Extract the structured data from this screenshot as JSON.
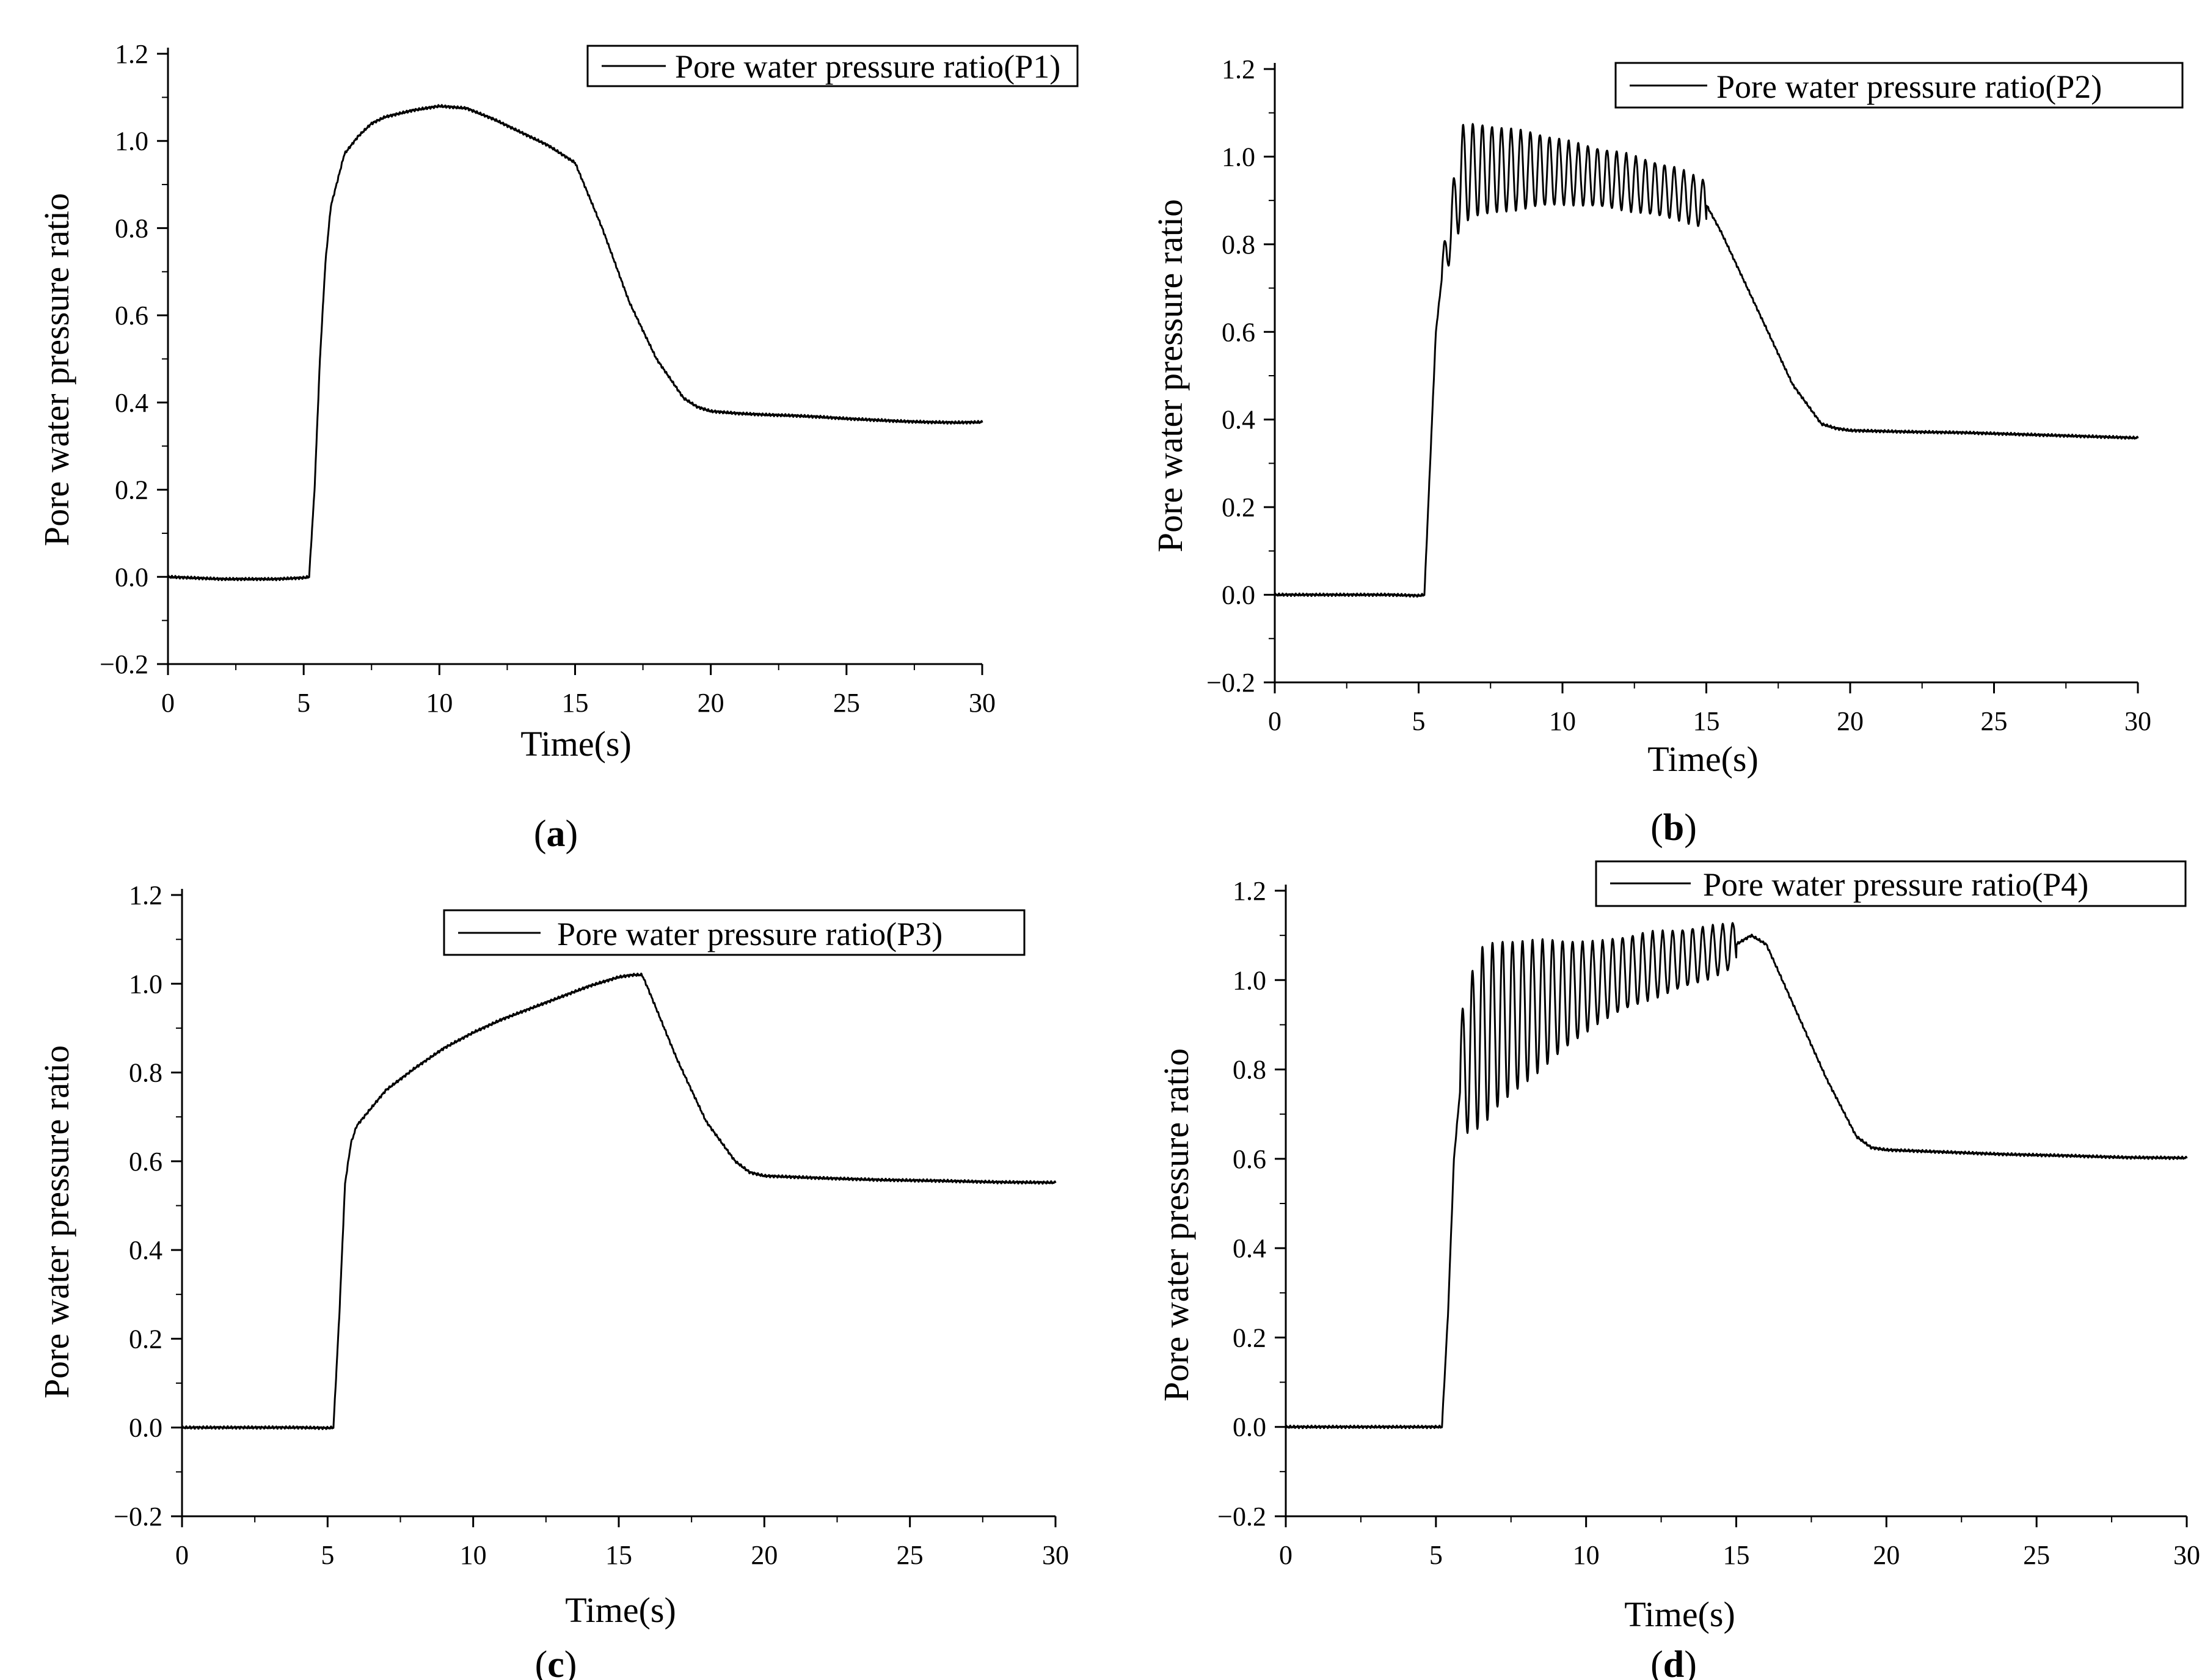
{
  "figure": {
    "panel_labels": [
      {
        "open": "(",
        "letter": "a",
        "close": ")"
      },
      {
        "open": "(",
        "letter": "b",
        "close": ")"
      },
      {
        "open": "(",
        "letter": "c",
        "close": ")"
      },
      {
        "open": "(",
        "letter": "d",
        "close": ")"
      }
    ]
  },
  "colors": {
    "line": "#000000",
    "background": "#ffffff"
  },
  "chart_data": [
    {
      "type": "line",
      "panel": "a",
      "title": "",
      "xlabel": "Time(s)",
      "ylabel": "Pore water pressure ratio",
      "xlim": [
        0,
        30
      ],
      "ylim": [
        -0.2,
        1.2
      ],
      "xticks": [
        0,
        5,
        10,
        15,
        20,
        25,
        30
      ],
      "yticks": [
        -0.2,
        0.0,
        0.2,
        0.4,
        0.6,
        0.8,
        1.0,
        1.2
      ],
      "xtick_labels": [
        "0",
        "5",
        "10",
        "15",
        "20",
        "25",
        "30"
      ],
      "ytick_labels": [
        "−0.2",
        "0.0",
        "0.2",
        "0.4",
        "0.6",
        "0.8",
        "1.0",
        "1.2"
      ],
      "legend": {
        "entries": [
          "Pore water pressure ratio(P1)"
        ],
        "position": "top-right"
      },
      "series": [
        {
          "name": "Pore water pressure ratio(P1)",
          "x": [
            0,
            2,
            4,
            5,
            5.2,
            5.4,
            5.6,
            5.8,
            6.0,
            6.5,
            7.0,
            7.5,
            8,
            9,
            10,
            11,
            12,
            13,
            14,
            15,
            16,
            17,
            18,
            19,
            19.5,
            20,
            21,
            22,
            23,
            24,
            25,
            26,
            27,
            28,
            29,
            30
          ],
          "y": [
            0.0,
            -0.005,
            -0.005,
            -0.002,
            0.0,
            0.2,
            0.5,
            0.72,
            0.85,
            0.97,
            1.01,
            1.04,
            1.055,
            1.07,
            1.08,
            1.075,
            1.05,
            1.02,
            0.99,
            0.95,
            0.8,
            0.63,
            0.5,
            0.41,
            0.39,
            0.38,
            0.375,
            0.372,
            0.37,
            0.367,
            0.363,
            0.36,
            0.357,
            0.355,
            0.354,
            0.355
          ],
          "oscillation": null
        }
      ]
    },
    {
      "type": "line",
      "panel": "b",
      "title": "",
      "xlabel": "Time(s)",
      "ylabel": "Pore water pressure ratio",
      "xlim": [
        0,
        30
      ],
      "ylim": [
        -0.2,
        1.2
      ],
      "xticks": [
        0,
        5,
        10,
        15,
        20,
        25,
        30
      ],
      "yticks": [
        -0.2,
        0.0,
        0.2,
        0.4,
        0.6,
        0.8,
        1.0,
        1.2
      ],
      "xtick_labels": [
        "0",
        "5",
        "10",
        "15",
        "20",
        "25",
        "30"
      ],
      "ytick_labels": [
        "−0.2",
        "0.0",
        "0.2",
        "0.4",
        "0.6",
        "0.8",
        "1.0",
        "1.2"
      ],
      "legend": {
        "entries": [
          "Pore water pressure ratio(P2)"
        ],
        "position": "top-right"
      },
      "series": [
        {
          "name": "Pore water pressure ratio(P2)",
          "x": [
            0,
            2,
            4,
            5,
            5.2,
            5.4,
            5.6,
            5.8,
            6.0,
            6.5,
            7,
            8,
            9,
            10,
            11,
            12,
            13,
            14,
            15,
            15.5,
            16,
            17,
            18,
            19,
            19.5,
            20,
            22,
            24,
            26,
            28,
            30
          ],
          "y": [
            0.0,
            0.0,
            0.0,
            -0.002,
            0.0,
            0.3,
            0.6,
            0.72,
            0.8,
            0.96,
            0.97,
            0.97,
            0.97,
            0.965,
            0.955,
            0.945,
            0.93,
            0.915,
            0.89,
            0.83,
            0.76,
            0.62,
            0.48,
            0.39,
            0.38,
            0.375,
            0.372,
            0.37,
            0.366,
            0.362,
            0.358
          ],
          "oscillation": {
            "t_start": 5.8,
            "t_end": 15.0,
            "frequency_hz": 3.0,
            "amplitude": [
              0.04,
              0.11,
              0.07,
              0.055
            ]
          }
        }
      ]
    },
    {
      "type": "line",
      "panel": "c",
      "title": "",
      "xlabel": "Time(s)",
      "ylabel": "Pore water pressure ratio",
      "xlim": [
        0,
        30
      ],
      "ylim": [
        -0.2,
        1.2
      ],
      "xticks": [
        0,
        5,
        10,
        15,
        20,
        25,
        30
      ],
      "yticks": [
        -0.2,
        0.0,
        0.2,
        0.4,
        0.6,
        0.8,
        1.0,
        1.2
      ],
      "xtick_labels": [
        "0",
        "5",
        "10",
        "15",
        "20",
        "25",
        "30"
      ],
      "ytick_labels": [
        "−0.2",
        "0.0",
        "0.2",
        "0.4",
        "0.6",
        "0.8",
        "1.0",
        "1.2"
      ],
      "legend": {
        "entries": [
          "Pore water pressure ratio(P3)"
        ],
        "position": "top-right"
      },
      "series": [
        {
          "name": "Pore water pressure ratio(P3)",
          "x": [
            0,
            2,
            4,
            5,
            5.2,
            5.4,
            5.6,
            5.8,
            6.0,
            6.5,
            7,
            8,
            9,
            10,
            11,
            12,
            13,
            14,
            15,
            15.5,
            15.8,
            16,
            17,
            18,
            19,
            19.5,
            20,
            22,
            24,
            26,
            28,
            30
          ],
          "y": [
            0.0,
            0.0,
            0.0,
            -0.001,
            0.0,
            0.25,
            0.55,
            0.64,
            0.68,
            0.72,
            0.76,
            0.81,
            0.855,
            0.89,
            0.92,
            0.945,
            0.97,
            0.995,
            1.015,
            1.02,
            1.02,
            0.99,
            0.83,
            0.69,
            0.6,
            0.575,
            0.567,
            0.562,
            0.558,
            0.556,
            0.553,
            0.552
          ],
          "oscillation": null
        }
      ]
    },
    {
      "type": "line",
      "panel": "d",
      "title": "",
      "xlabel": "Time(s)",
      "ylabel": "Pore water pressure ratio",
      "xlim": [
        0,
        30
      ],
      "ylim": [
        -0.2,
        1.2
      ],
      "xticks": [
        0,
        5,
        10,
        15,
        20,
        25,
        30
      ],
      "yticks": [
        -0.2,
        0.0,
        0.2,
        0.4,
        0.6,
        0.8,
        1.0,
        1.2
      ],
      "xtick_labels": [
        "0",
        "5",
        "10",
        "15",
        "20",
        "25",
        "30"
      ],
      "ytick_labels": [
        "−0.2",
        "0.0",
        "0.2",
        "0.4",
        "0.6",
        "0.8",
        "1.0",
        "1.2"
      ],
      "legend": {
        "entries": [
          "Pore water pressure ratio(P4)"
        ],
        "position": "top-right"
      },
      "series": [
        {
          "name": "Pore water pressure ratio(P4)",
          "x": [
            0,
            2,
            4,
            5,
            5.2,
            5.4,
            5.6,
            5.8,
            6.0,
            6.5,
            7,
            8,
            9,
            10,
            11,
            12,
            13,
            14,
            15,
            15.5,
            16,
            17,
            18,
            19,
            19.5,
            20,
            22,
            24,
            26,
            28,
            30
          ],
          "y": [
            0.0,
            0.0,
            0.0,
            0.0,
            0.0,
            0.25,
            0.6,
            0.75,
            0.82,
            0.87,
            0.9,
            0.93,
            0.96,
            0.985,
            1.01,
            1.03,
            1.045,
            1.06,
            1.08,
            1.1,
            1.08,
            0.93,
            0.78,
            0.65,
            0.625,
            0.62,
            0.615,
            0.61,
            0.607,
            0.603,
            0.602
          ],
          "oscillation": {
            "t_start": 5.8,
            "t_end": 15.0,
            "frequency_hz": 3.0,
            "amplitude": [
              0.15,
              0.2,
              0.09,
              0.05
            ]
          }
        }
      ]
    }
  ]
}
